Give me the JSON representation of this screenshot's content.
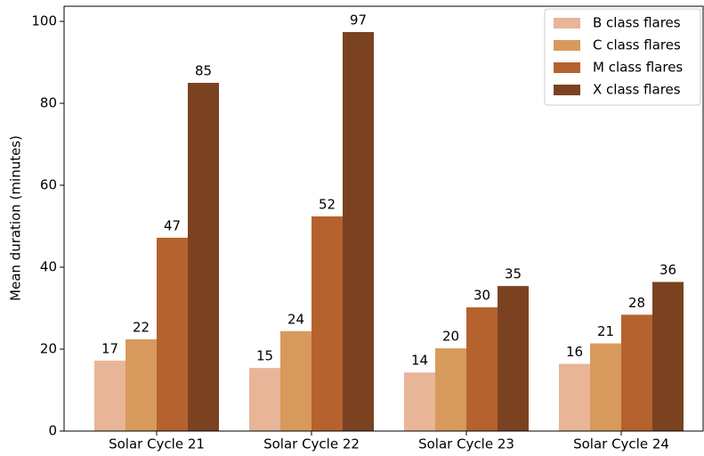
{
  "chart_data": {
    "type": "bar",
    "ylabel": "Mean duration (minutes)",
    "categories": [
      "Solar Cycle 21",
      "Solar Cycle 22",
      "Solar Cycle 23",
      "Solar Cycle 24"
    ],
    "series": [
      {
        "name": "B class flares",
        "color": "#e8b598",
        "values": [
          17.2,
          15.4,
          14.3,
          16.4
        ],
        "value_labels": [
          "17",
          "15",
          "14",
          "16"
        ]
      },
      {
        "name": "C class flares",
        "color": "#d79a5c",
        "values": [
          22.4,
          24.4,
          20.2,
          21.4
        ],
        "value_labels": [
          "22",
          "24",
          "20",
          "21"
        ]
      },
      {
        "name": "M class flares",
        "color": "#b5622f",
        "values": [
          47.2,
          52.4,
          30.2,
          28.4
        ],
        "value_labels": [
          "47",
          "52",
          "30",
          "28"
        ]
      },
      {
        "name": "X class flares",
        "color": "#7b4222",
        "values": [
          85.0,
          97.4,
          35.4,
          36.4
        ],
        "value_labels": [
          "85",
          "97",
          "35",
          "36"
        ]
      }
    ],
    "ylim": [
      0,
      103.7
    ],
    "yticks": [
      0,
      20,
      40,
      60,
      80,
      100
    ],
    "legend": "upper right"
  }
}
